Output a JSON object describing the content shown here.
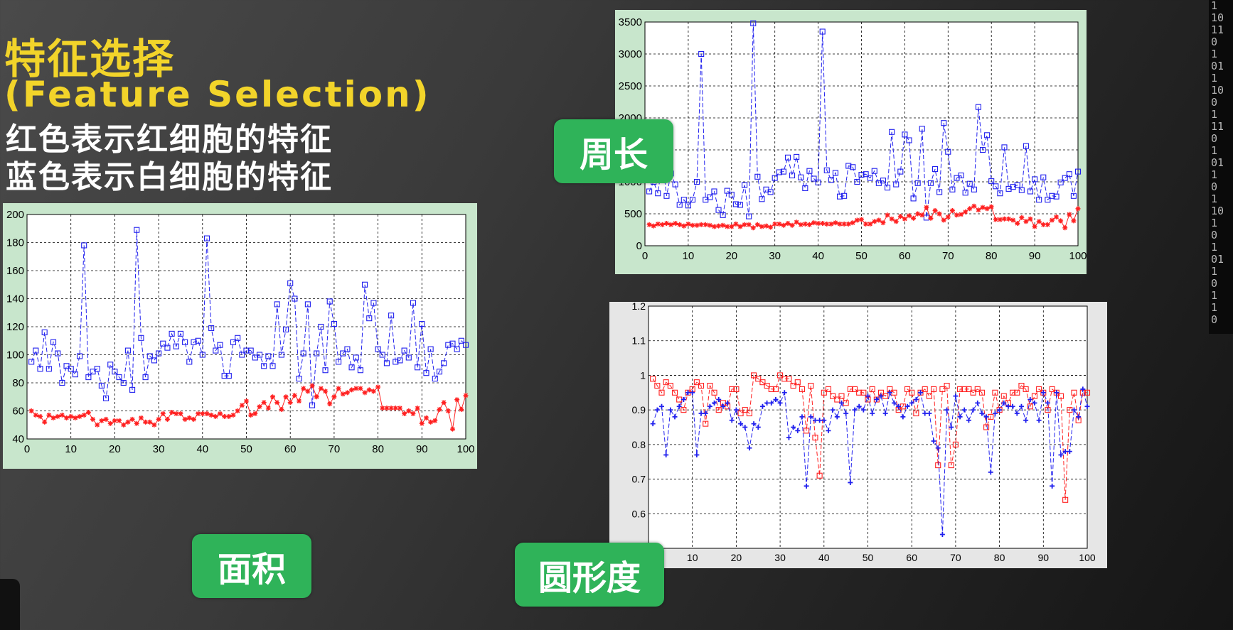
{
  "slide": {
    "title_cn": "特征选择",
    "title_en": "(Feature  Selection)",
    "desc_red": "红色表示红细胞的特征",
    "desc_blue": "蓝色表示白细胞的特征",
    "deco_digits": "1\n10\n11\n0\n1\n01\n1\n10\n0\n1\n11\n0\n1\n01\n1\n0\n1\n10\n1\n0\n1\n01\n1\n0\n1\n1\n0"
  },
  "labels": {
    "area": "面积",
    "perimeter": "周长",
    "circularity": "圆形度"
  },
  "colors": {
    "red": "#ff2020",
    "blue": "#2020ee",
    "tag_green": "#2fb359",
    "title_yellow": "#f2d42a",
    "frame": "#c8e6cc"
  },
  "chart_data": [
    {
      "id": "area",
      "type": "line",
      "title": "",
      "xlabel": "",
      "ylabel": "",
      "xlim": [
        0,
        100
      ],
      "ylim": [
        40,
        200
      ],
      "xticks": [
        0,
        10,
        20,
        30,
        40,
        50,
        60,
        70,
        80,
        90,
        100
      ],
      "yticks": [
        40,
        60,
        80,
        100,
        120,
        140,
        160,
        180,
        200
      ],
      "grid": true,
      "series": [
        {
          "color": "blue",
          "marker": "square",
          "dashed": true,
          "values": [
            95,
            103,
            90,
            116,
            90,
            109,
            101,
            80,
            92,
            90,
            86,
            99,
            178,
            84,
            88,
            90,
            78,
            69,
            93,
            88,
            84,
            80,
            103,
            75,
            189,
            112,
            84,
            99,
            96,
            101,
            108,
            105,
            115,
            106,
            115,
            109,
            95,
            109,
            110,
            100,
            183,
            119,
            103,
            107,
            85,
            85,
            109,
            112,
            100,
            103,
            103,
            98,
            100,
            92,
            99,
            92,
            136,
            100,
            118,
            151,
            140,
            83,
            101,
            136,
            64,
            101,
            120,
            89,
            138,
            122,
            95,
            101,
            104,
            91,
            98,
            89,
            150,
            126,
            137,
            104,
            100,
            94,
            128,
            95,
            96,
            103,
            98,
            137,
            91,
            122,
            87,
            104,
            83,
            88,
            94,
            107,
            108,
            104,
            110,
            107
          ]
        },
        {
          "color": "red",
          "marker": "star",
          "dashed": false,
          "values": [
            60,
            57,
            56,
            52,
            57,
            55,
            56,
            57,
            55,
            56,
            55,
            56,
            57,
            59,
            54,
            50,
            53,
            54,
            51,
            53,
            53,
            50,
            52,
            54,
            51,
            55,
            52,
            52,
            50,
            54,
            58,
            54,
            59,
            58,
            58,
            54,
            55,
            54,
            58,
            58,
            58,
            57,
            56,
            58,
            56,
            56,
            57,
            60,
            64,
            67,
            57,
            58,
            63,
            66,
            62,
            70,
            66,
            61,
            70,
            66,
            71,
            67,
            76,
            74,
            78,
            70,
            76,
            74,
            65,
            70,
            76,
            72,
            73,
            75,
            76,
            76,
            73,
            75,
            74,
            77,
            62,
            62,
            62,
            62,
            62,
            58,
            60,
            58,
            62,
            51,
            55,
            52,
            53,
            61,
            66,
            60,
            47,
            68,
            61,
            71
          ]
        }
      ]
    },
    {
      "id": "perimeter",
      "type": "line",
      "title": "",
      "xlabel": "",
      "ylabel": "",
      "xlim": [
        0,
        100
      ],
      "ylim": [
        0,
        3500
      ],
      "xticks": [
        0,
        10,
        20,
        30,
        40,
        50,
        60,
        70,
        80,
        90,
        100
      ],
      "yticks": [
        0,
        500,
        1000,
        1500,
        2000,
        2500,
        3000,
        3500
      ],
      "grid": true,
      "series": [
        {
          "color": "blue",
          "marker": "square",
          "dashed": true,
          "values": [
            850,
            1000,
            820,
            1340,
            780,
            1130,
            960,
            640,
            720,
            630,
            720,
            1000,
            3000,
            720,
            760,
            850,
            560,
            480,
            860,
            800,
            650,
            640,
            950,
            460,
            3480,
            1080,
            730,
            880,
            840,
            1060,
            1150,
            1160,
            1380,
            1100,
            1390,
            1070,
            900,
            1170,
            1050,
            990,
            3350,
            1180,
            1030,
            1140,
            770,
            780,
            1250,
            1230,
            1000,
            1110,
            1120,
            1060,
            1170,
            980,
            1020,
            910,
            1780,
            960,
            1160,
            1740,
            1650,
            740,
            980,
            1830,
            440,
            980,
            1200,
            840,
            1920,
            1470,
            880,
            1060,
            1100,
            830,
            970,
            880,
            2170,
            1500,
            1730,
            1010,
            930,
            820,
            1540,
            890,
            920,
            950,
            870,
            1560,
            850,
            1040,
            720,
            1070,
            720,
            780,
            770,
            990,
            1060,
            1120,
            780,
            1160
          ]
        },
        {
          "color": "red",
          "marker": "star",
          "dashed": false,
          "values": [
            330,
            310,
            340,
            330,
            350,
            330,
            350,
            330,
            310,
            340,
            320,
            320,
            330,
            330,
            320,
            300,
            310,
            320,
            300,
            300,
            340,
            300,
            330,
            330,
            280,
            330,
            300,
            310,
            290,
            340,
            340,
            320,
            350,
            320,
            370,
            330,
            340,
            330,
            360,
            350,
            350,
            340,
            340,
            360,
            340,
            340,
            340,
            360,
            400,
            410,
            340,
            340,
            380,
            400,
            360,
            480,
            420,
            380,
            460,
            420,
            470,
            430,
            500,
            480,
            600,
            430,
            550,
            500,
            400,
            450,
            550,
            480,
            490,
            530,
            580,
            620,
            560,
            600,
            580,
            610,
            410,
            410,
            420,
            420,
            400,
            350,
            440,
            380,
            420,
            300,
            380,
            330,
            330,
            400,
            450,
            390,
            280,
            490,
            390,
            580
          ]
        }
      ]
    },
    {
      "id": "circularity",
      "type": "line",
      "title": "",
      "xlabel": "",
      "ylabel": "",
      "xlim": [
        0,
        100
      ],
      "ylim": [
        0.5,
        1.2
      ],
      "xticks": [
        0,
        10,
        20,
        30,
        40,
        50,
        60,
        70,
        80,
        90,
        100
      ],
      "yticks": [
        0.5,
        0.6,
        0.7,
        0.8,
        0.9,
        1,
        1.1,
        1.2
      ],
      "grid": true,
      "series": [
        {
          "color": "red",
          "marker": "square",
          "dashed": true,
          "values": [
            0.99,
            0.97,
            0.95,
            0.98,
            0.97,
            0.95,
            0.93,
            0.9,
            0.95,
            0.96,
            0.98,
            0.97,
            0.86,
            0.97,
            0.95,
            0.9,
            0.92,
            0.91,
            0.96,
            0.96,
            0.89,
            0.9,
            0.89,
            1.0,
            0.99,
            0.98,
            0.97,
            0.96,
            0.96,
            1.0,
            0.99,
            0.99,
            0.97,
            0.98,
            0.96,
            0.84,
            0.97,
            0.82,
            0.71,
            0.95,
            0.96,
            0.94,
            0.93,
            0.94,
            0.92,
            0.96,
            0.96,
            0.95,
            0.95,
            0.93,
            0.96,
            0.93,
            0.95,
            0.94,
            0.96,
            0.95,
            0.9,
            0.91,
            0.96,
            0.95,
            0.89,
            0.95,
            0.96,
            0.94,
            0.96,
            0.74,
            0.96,
            0.97,
            0.74,
            0.8,
            0.96,
            0.96,
            0.96,
            0.95,
            0.96,
            0.95,
            0.85,
            0.88,
            0.95,
            0.9,
            0.94,
            0.92,
            0.95,
            0.95,
            0.97,
            0.96,
            0.91,
            0.94,
            0.96,
            0.95,
            0.9,
            0.96,
            0.95,
            0.94,
            0.64,
            0.9,
            0.95,
            0.87,
            0.95,
            0.95
          ]
        },
        {
          "color": "blue",
          "marker": "plus",
          "dashed": true,
          "values": [
            0.86,
            0.9,
            0.91,
            0.77,
            0.9,
            0.88,
            0.91,
            0.93,
            0.95,
            0.95,
            0.77,
            0.89,
            0.89,
            0.91,
            0.92,
            0.93,
            0.91,
            0.92,
            0.87,
            0.9,
            0.86,
            0.85,
            0.79,
            0.86,
            0.85,
            0.91,
            0.92,
            0.92,
            0.93,
            0.92,
            0.95,
            0.82,
            0.85,
            0.84,
            0.88,
            0.68,
            0.88,
            0.87,
            0.87,
            0.87,
            0.84,
            0.9,
            0.88,
            0.92,
            0.89,
            0.69,
            0.9,
            0.91,
            0.9,
            0.94,
            0.89,
            0.93,
            0.94,
            0.89,
            0.95,
            0.92,
            0.91,
            0.88,
            0.91,
            0.92,
            0.93,
            0.95,
            0.89,
            0.89,
            0.81,
            0.79,
            0.54,
            0.9,
            0.85,
            0.94,
            0.88,
            0.9,
            0.87,
            0.9,
            0.92,
            0.89,
            0.88,
            0.72,
            0.89,
            0.9,
            0.92,
            0.91,
            0.91,
            0.89,
            0.91,
            0.87,
            0.93,
            0.92,
            0.87,
            0.95,
            0.92,
            0.68,
            0.95,
            0.77,
            0.78,
            0.78,
            0.9,
            0.88,
            0.96,
            0.91
          ]
        }
      ]
    }
  ]
}
